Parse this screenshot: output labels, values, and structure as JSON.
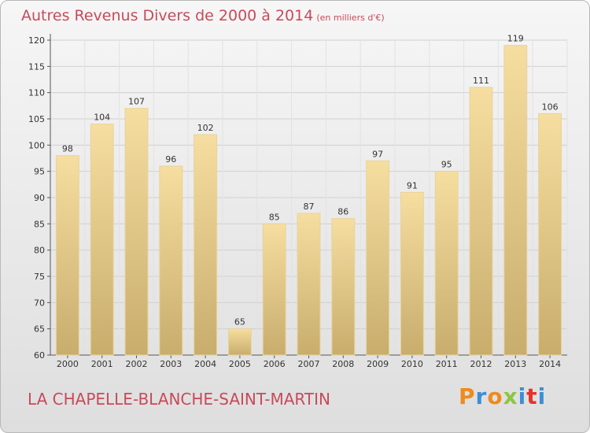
{
  "title": "Autres Revenus Divers de 2000 à 2014",
  "title_unit": "(en milliers d'€)",
  "place_name": "LA CHAPELLE-BLANCHE-SAINT-MARTIN",
  "logo": {
    "text": "Proxiti",
    "colors": [
      "#f08a1c",
      "#3b8fd6",
      "#f08a1c",
      "#8cc63f",
      "#3b8fd6",
      "#e6332a",
      "#3b8fd6"
    ]
  },
  "colors": {
    "accent": "#c84a5a",
    "bar_light": "#f6dea0",
    "bar_dark": "#c8ad6d"
  },
  "chart_data": {
    "type": "bar",
    "title": "Autres Revenus Divers de 2000 à 2014",
    "ylabel": "",
    "xlabel": "",
    "ylim": [
      60,
      120
    ],
    "yticks": [
      60,
      65,
      70,
      75,
      80,
      85,
      90,
      95,
      100,
      105,
      110,
      115,
      120
    ],
    "grid": true,
    "categories": [
      "2000",
      "2001",
      "2002",
      "2003",
      "2004",
      "2005",
      "2006",
      "2007",
      "2008",
      "2009",
      "2010",
      "2011",
      "2012",
      "2013",
      "2014"
    ],
    "values": [
      98,
      104,
      107,
      96,
      102,
      65,
      85,
      87,
      86,
      97,
      91,
      95,
      111,
      119,
      106
    ]
  }
}
